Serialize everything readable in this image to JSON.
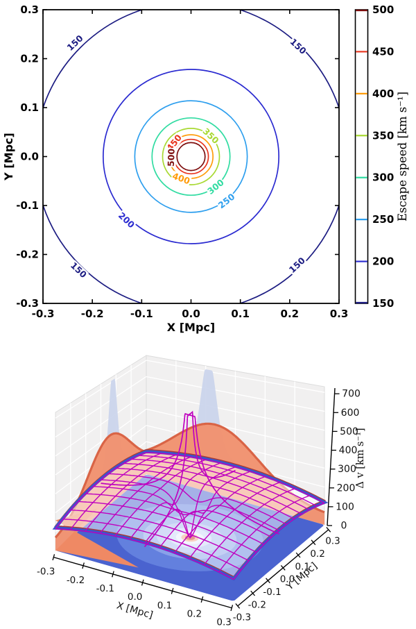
{
  "figure": {
    "background": "#ffffff"
  },
  "chart_data": [
    {
      "id": "escape-speed-contour-map",
      "type": "contour",
      "xlabel": "X [Mpc]",
      "ylabel": "Y [Mpc]",
      "xlim": [
        -0.3,
        0.3
      ],
      "ylim": [
        -0.3,
        0.3
      ],
      "xticks": [
        -0.3,
        -0.2,
        -0.1,
        0.0,
        0.1,
        0.2,
        0.3
      ],
      "yticks": [
        -0.3,
        -0.2,
        -0.1,
        0.0,
        0.1,
        0.2,
        0.3
      ],
      "grid": false,
      "levels": [
        {
          "value": 150,
          "radius_mpc": 0.316,
          "color": "#1c1c82"
        },
        {
          "value": 200,
          "radius_mpc": 0.178,
          "color": "#2a2ad0"
        },
        {
          "value": 250,
          "radius_mpc": 0.114,
          "color": "#2e9fee"
        },
        {
          "value": 300,
          "radius_mpc": 0.079,
          "color": "#31dca2"
        },
        {
          "value": 350,
          "radius_mpc": 0.0576,
          "color": "#a8d932"
        },
        {
          "value": 400,
          "radius_mpc": 0.0445,
          "color": "#ff9c0a"
        },
        {
          "value": 450,
          "radius_mpc": 0.0352,
          "color": "#e8331c"
        },
        {
          "value": 500,
          "radius_mpc": 0.0285,
          "color": "#7d0d0d"
        }
      ],
      "contour_labels": [
        {
          "text": "150",
          "x": -0.235,
          "y": 0.232,
          "rot": -43
        },
        {
          "text": "150",
          "x": 0.217,
          "y": 0.225,
          "rot": 43
        },
        {
          "text": "150",
          "x": -0.228,
          "y": -0.232,
          "rot": 43
        },
        {
          "text": "150",
          "x": 0.215,
          "y": -0.222,
          "rot": -43
        },
        {
          "text": "200",
          "x": -0.131,
          "y": -0.13,
          "rot": 43
        },
        {
          "text": "250",
          "x": 0.072,
          "y": -0.091,
          "rot": -38
        },
        {
          "text": "300",
          "x": 0.05,
          "y": -0.062,
          "rot": -39
        },
        {
          "text": "350",
          "x": 0.04,
          "y": 0.042,
          "rot": 44
        },
        {
          "text": "400",
          "x": -0.02,
          "y": -0.045,
          "rot": 20
        },
        {
          "text": "450",
          "x": -0.034,
          "y": 0.028,
          "rot": -51
        },
        {
          "text": "500",
          "x": -0.04,
          "y": -0.002,
          "rot": -88
        }
      ],
      "colorbar": {
        "label": "Escape speed [km s⁻¹]",
        "min": 150,
        "max": 500,
        "ticks": [
          150,
          200,
          250,
          300,
          350,
          400,
          450,
          500
        ]
      }
    },
    {
      "id": "delta-v-3d-surface",
      "type": "surface3d",
      "xlabel": "X [Mpc]",
      "ylabel": "Y [Mpc]",
      "zlabel": "Δ v [km s⁻¹]",
      "xticks": [
        -0.3,
        -0.2,
        -0.1,
        0.0,
        0.1,
        0.2,
        0.3
      ],
      "yticks": [
        -0.3,
        -0.2,
        -0.1,
        0.0,
        0.1,
        0.2,
        0.3
      ],
      "zticks": [
        0,
        100,
        200,
        300,
        400,
        500,
        600,
        700
      ],
      "zaxis_max": 730,
      "pane_color": "#f1f0f0",
      "grid_color": "#ffffff",
      "wireframe": {
        "color": "#bf00bf",
        "grid_step_mpc": 0.05,
        "center_plateau_kms": 230,
        "corner_height_kms": 115,
        "funnel_radius_mpc": 0.045
      },
      "escape_speed_spike": {
        "color": "#bf00bf",
        "v_at_r0178": 200,
        "clip_kms": 655
      },
      "edge_band": {
        "color": "#3b55cc",
        "dark_rim": "#a83a33"
      },
      "wall_profiles": {
        "blue_fill": "#c7d1ea",
        "blue_peak_kms": 710,
        "blue_peak_pos_left_y": 0.08,
        "blue_peak_pos_right_x": -0.09,
        "orange_fill": "#f19270",
        "orange_edge": "#d96446",
        "orange_peak_kms": 400,
        "orange_base_kms": 55
      },
      "floor_projection_rings": [
        {
          "r_mpc": 0.42,
          "color": "#4a63cf"
        },
        {
          "r_mpc": 0.22,
          "color": "#6380de"
        },
        {
          "r_mpc": 0.14,
          "color": "#89a1e9"
        },
        {
          "r_mpc": 0.1,
          "color": "#a9baef"
        },
        {
          "r_mpc": 0.065,
          "color": "#c9d4f6"
        },
        {
          "r_mpc": 0.042,
          "color": "#e6ebfb"
        },
        {
          "r_mpc": 0.026,
          "color": "#f0a487"
        },
        {
          "r_mpc": 0.015,
          "color": "#c92d24"
        }
      ]
    }
  ]
}
